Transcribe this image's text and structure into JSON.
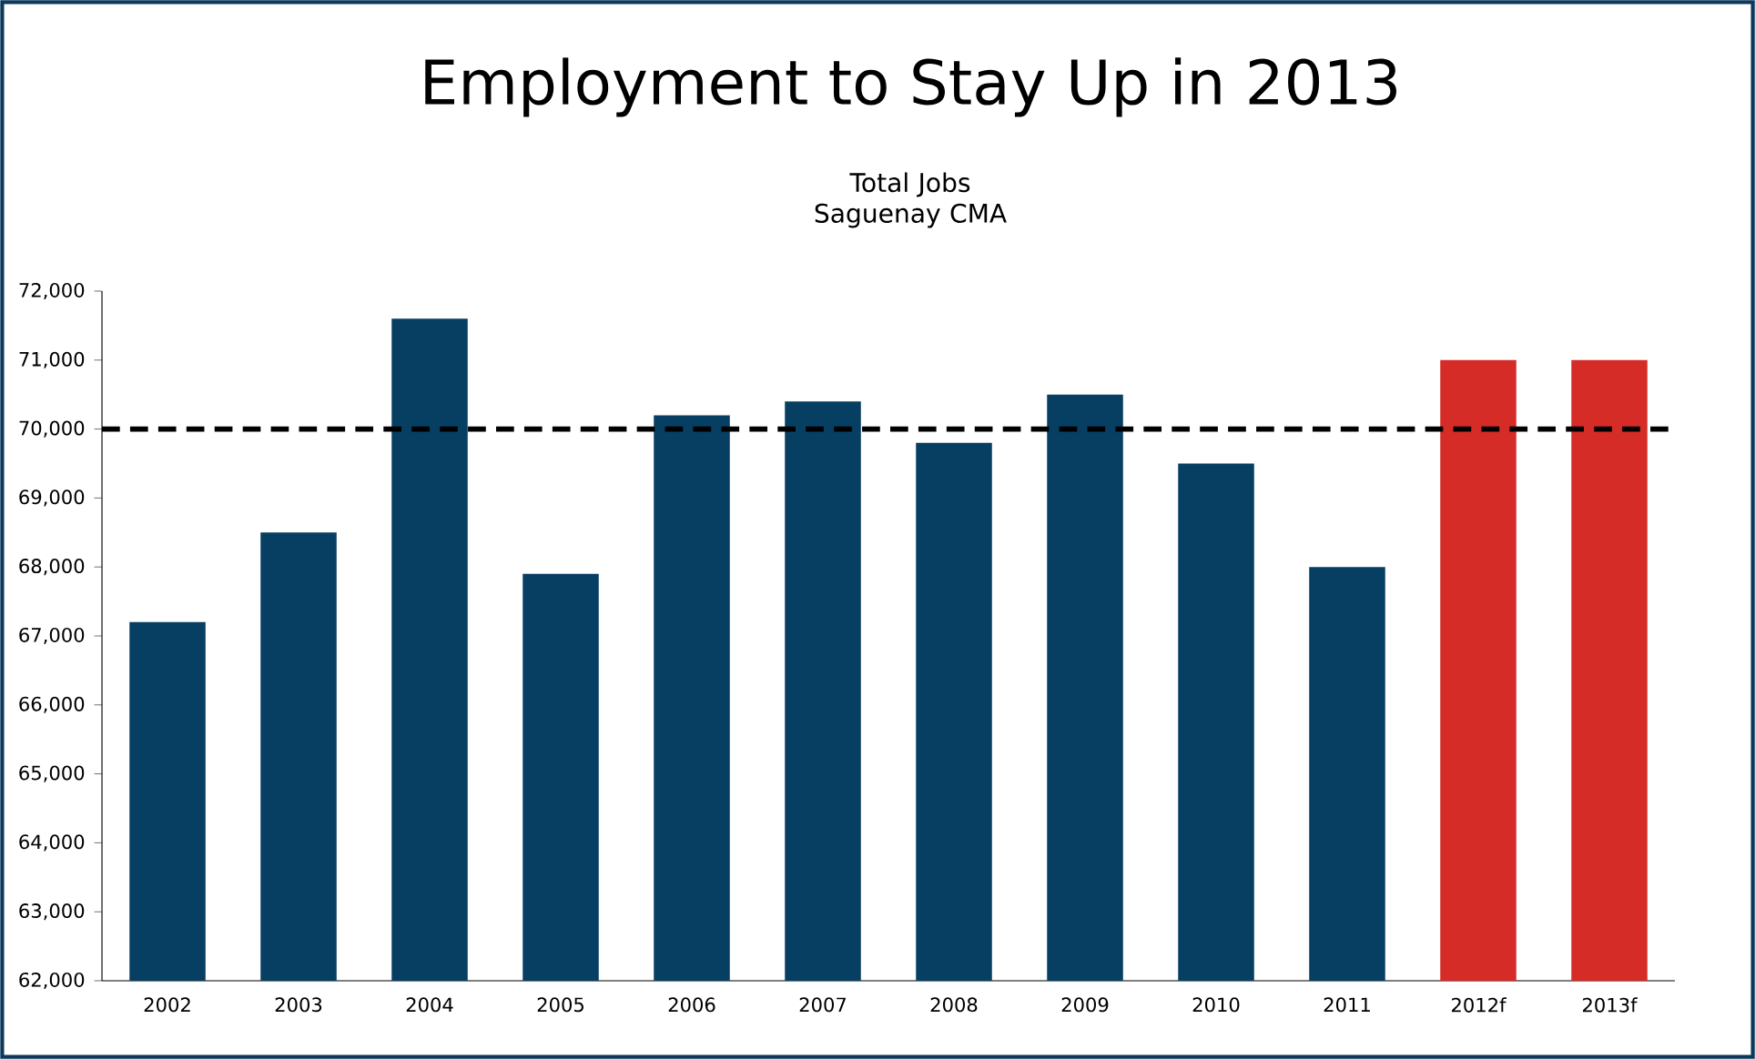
{
  "chart_data": {
    "type": "bar",
    "title": "Employment to Stay Up in 2013",
    "subtitle": "Total Jobs Saguenay CMA",
    "categories": [
      "2002",
      "2003",
      "2004",
      "2005",
      "2006",
      "2007",
      "2008",
      "2009",
      "2010",
      "2011",
      "2012f",
      "2013f"
    ],
    "values": [
      67200,
      68500,
      71600,
      67900,
      70200,
      70400,
      69800,
      70500,
      69500,
      68000,
      71000,
      71000
    ],
    "colors": [
      "#073f63",
      "#073f63",
      "#073f63",
      "#073f63",
      "#073f63",
      "#073f63",
      "#073f63",
      "#073f63",
      "#073f63",
      "#073f63",
      "#d62c27",
      "#d62c27"
    ],
    "ylim": [
      62000,
      72000
    ],
    "yticks": [
      {
        "value": 62000,
        "label": "62,000"
      },
      {
        "value": 63000,
        "label": "63,000"
      },
      {
        "value": 64000,
        "label": "64,000"
      },
      {
        "value": 65000,
        "label": "65,000"
      },
      {
        "value": 66000,
        "label": "66,000"
      },
      {
        "value": 67000,
        "label": "67,000"
      },
      {
        "value": 68000,
        "label": "68,000"
      },
      {
        "value": 69000,
        "label": "69,000"
      },
      {
        "value": 70000,
        "label": "70,000"
      },
      {
        "value": 71000,
        "label": "71,000"
      },
      {
        "value": 72000,
        "label": "72,000"
      }
    ],
    "ref_lines": [
      {
        "axis": "y",
        "value": 70000,
        "color": "#000000",
        "line_style": "dashed"
      }
    ],
    "grid": false
  }
}
